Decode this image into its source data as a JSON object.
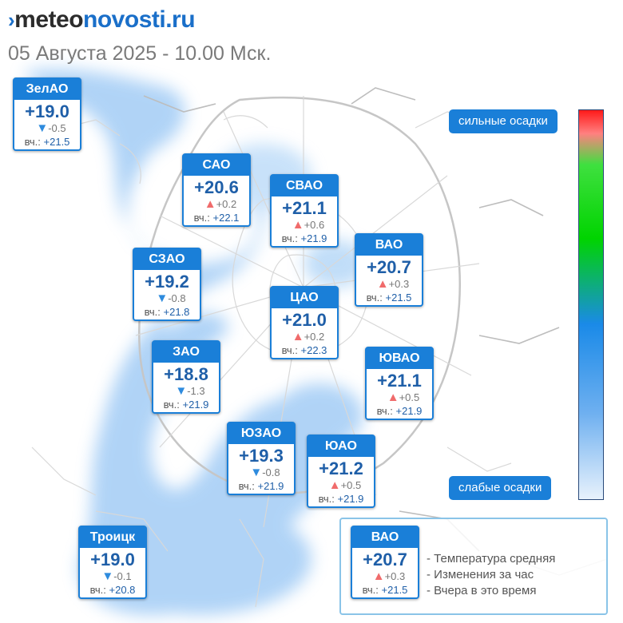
{
  "header": {
    "logo_part1": "meteo",
    "logo_part2": "novosti.ru",
    "subtitle": "05 Августа 2025 - 10.00 Мск."
  },
  "districts": [
    {
      "name": "ЗелАО",
      "temp": "+19.0",
      "trend": "down",
      "change": "-0.5",
      "yest_label": "вч.:",
      "yest": "+21.5"
    },
    {
      "name": "САО",
      "temp": "+20.6",
      "trend": "up",
      "change": "+0.2",
      "yest_label": "вч.:",
      "yest": "+22.1"
    },
    {
      "name": "СВАО",
      "temp": "+21.1",
      "trend": "up",
      "change": "+0.6",
      "yest_label": "вч.:",
      "yest": "+21.9"
    },
    {
      "name": "ВАО",
      "temp": "+20.7",
      "trend": "up",
      "change": "+0.3",
      "yest_label": "вч.:",
      "yest": "+21.5"
    },
    {
      "name": "СЗАО",
      "temp": "+19.2",
      "trend": "down",
      "change": "-0.8",
      "yest_label": "вч.:",
      "yest": "+21.8"
    },
    {
      "name": "ЦАО",
      "temp": "+21.0",
      "trend": "up",
      "change": "+0.2",
      "yest_label": "вч.:",
      "yest": "+22.3"
    },
    {
      "name": "ЗАО",
      "temp": "+18.8",
      "trend": "down",
      "change": "-1.3",
      "yest_label": "вч.:",
      "yest": "+21.9"
    },
    {
      "name": "ЮВАО",
      "temp": "+21.1",
      "trend": "up",
      "change": "+0.5",
      "yest_label": "вч.:",
      "yest": "+21.9"
    },
    {
      "name": "ЮЗАО",
      "temp": "+19.3",
      "trend": "down",
      "change": "-0.8",
      "yest_label": "вч.:",
      "yest": "+21.9"
    },
    {
      "name": "ЮАО",
      "temp": "+21.2",
      "trend": "up",
      "change": "+0.5",
      "yest_label": "вч.:",
      "yest": "+21.9"
    },
    {
      "name": "Троицк",
      "temp": "+19.0",
      "trend": "down",
      "change": "-0.1",
      "yest_label": "вч.:",
      "yest": "+20.8"
    }
  ],
  "precip_scale": {
    "high_label": "сильные осадки",
    "low_label": "слабые осадки",
    "colors": [
      "#ff1a1a",
      "#00d400",
      "#1a8ae8",
      "#e8f2fc"
    ]
  },
  "legend": {
    "sample": {
      "name": "ВАО",
      "temp": "+20.7",
      "trend": "up",
      "change": "+0.3",
      "yest_label": "вч.:",
      "yest": "+21.5"
    },
    "items": [
      "- Температура средняя",
      "- Изменения за час",
      "- Вчера в это время"
    ]
  },
  "colors": {
    "accent": "#1a7fd8",
    "temp_text": "#1f5fa8",
    "up": "#f06b6b",
    "down": "#2e8bde"
  }
}
